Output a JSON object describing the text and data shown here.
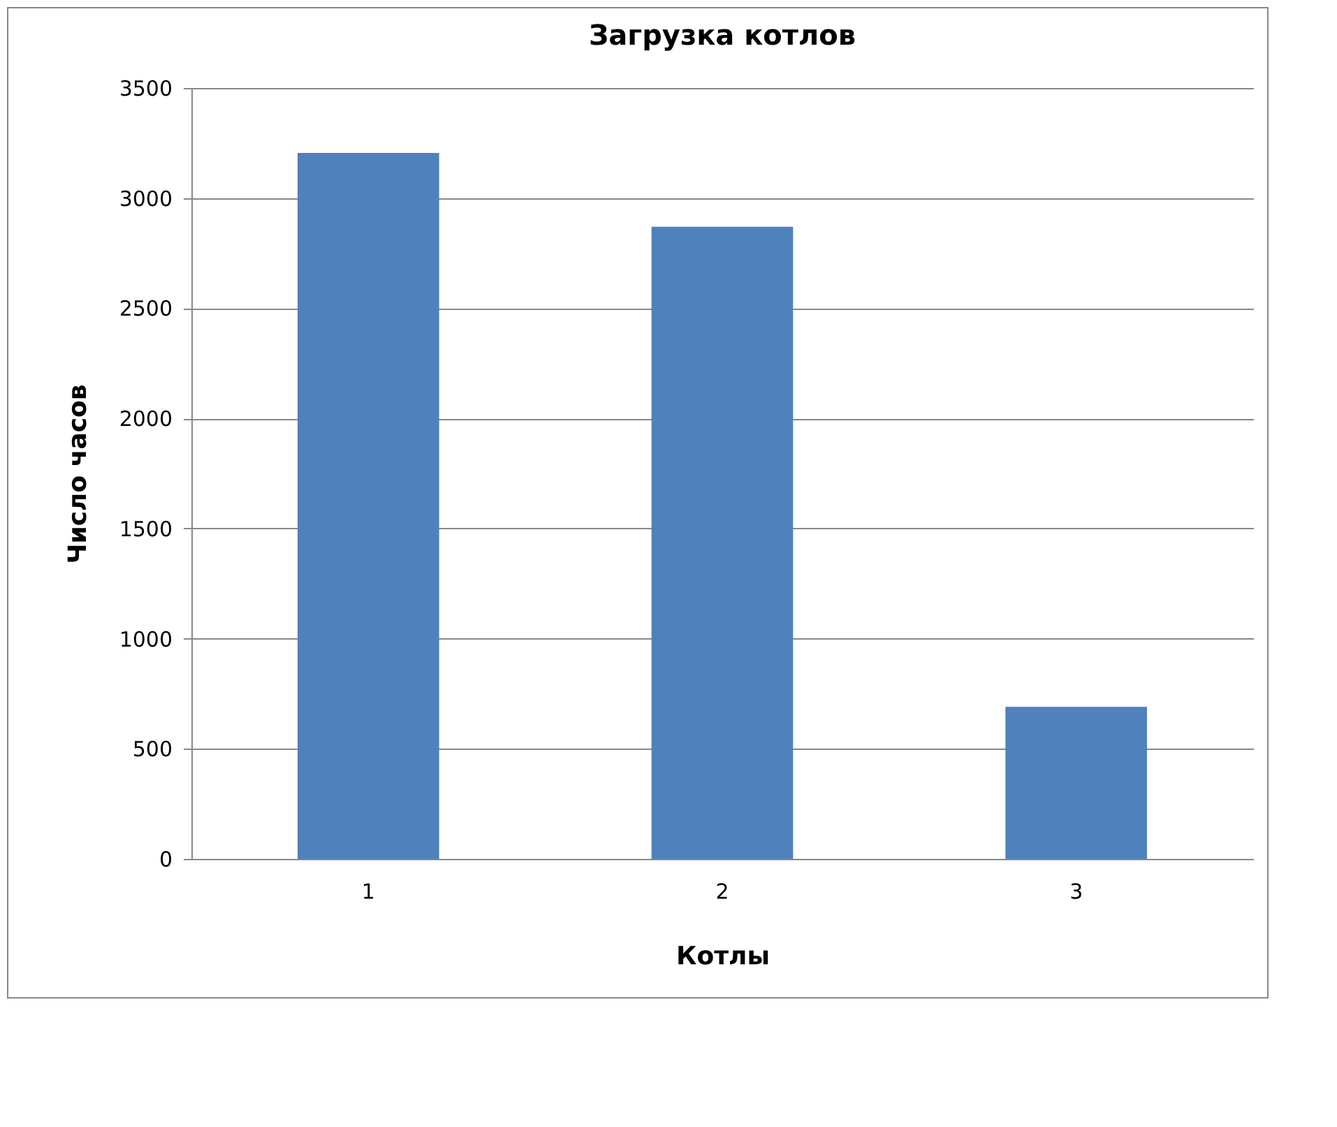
{
  "chart_data": {
    "type": "bar",
    "title": "Загрузка котлов",
    "xlabel": "Котлы",
    "ylabel": "Число часов",
    "categories": [
      "1",
      "2",
      "3"
    ],
    "values": [
      3205,
      2870,
      690
    ],
    "color": "#4f81bd",
    "ylim": [
      0,
      3500
    ],
    "yticks": [
      0,
      500,
      1000,
      1500,
      2000,
      2500,
      3000,
      3500
    ],
    "grid": "y"
  }
}
